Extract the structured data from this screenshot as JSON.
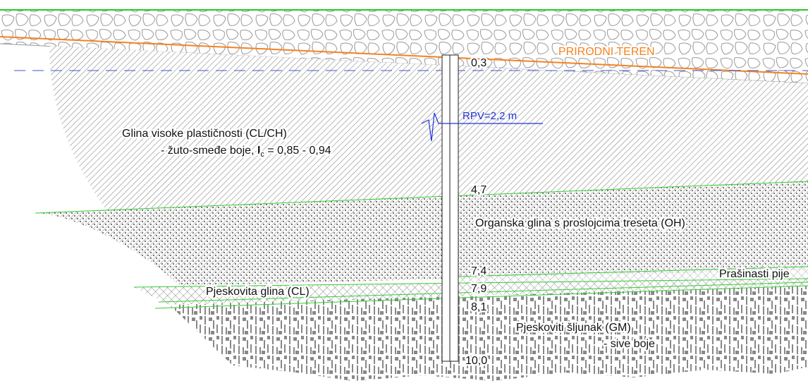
{
  "ground_label": "PRIRODNI TEREN",
  "water_level": "RPV=2,2 m",
  "depths": [
    "0,3",
    "4,7",
    "7,4",
    "7,9",
    "8,1",
    "10,0"
  ],
  "layers": [
    {
      "name": "Glina visoke plastičnosti (CL/CH)",
      "description_prefix": "- žuto-smeđe boje, ",
      "index_symbol": "I",
      "index_subscript": "c",
      "index_range": " = 0,85 - 0,94"
    },
    {
      "name": "Organska glina s proslojcima treseta (OH)"
    },
    {
      "name": "Prašinasti pije"
    },
    {
      "name": "Pjeskovita glina (CL)"
    },
    {
      "name": "Pjeskoviti šljunak (GM)",
      "description": "- sive boje"
    }
  ]
}
